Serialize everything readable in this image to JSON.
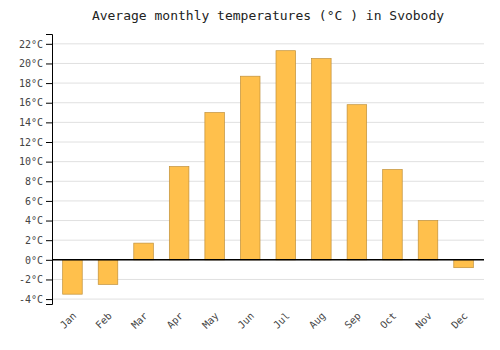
{
  "chart_data": {
    "type": "bar",
    "title": "Average monthly temperatures (°C ) in Svobody",
    "categories": [
      "Jan",
      "Feb",
      "Mar",
      "Apr",
      "May",
      "Jun",
      "Jul",
      "Aug",
      "Sep",
      "Oct",
      "Nov",
      "Dec"
    ],
    "values": [
      -3.5,
      -2.5,
      1.7,
      9.5,
      15.0,
      18.7,
      21.3,
      20.5,
      15.8,
      9.2,
      4.0,
      -0.8
    ],
    "color": "#FFC04C",
    "ylim": [
      -4.5,
      23
    ],
    "yticks": [
      {
        "value": -4,
        "label": "-4°C"
      },
      {
        "value": -2,
        "label": "-2°C"
      },
      {
        "value": 0,
        "label": "0°C"
      },
      {
        "value": 2,
        "label": "2°C"
      },
      {
        "value": 4,
        "label": "4°C"
      },
      {
        "value": 6,
        "label": "6°C"
      },
      {
        "value": 8,
        "label": "8°C"
      },
      {
        "value": 10,
        "label": "10°C"
      },
      {
        "value": 12,
        "label": "12°C"
      },
      {
        "value": 14,
        "label": "14°C"
      },
      {
        "value": 16,
        "label": "16°C"
      },
      {
        "value": 18,
        "label": "18°C"
      },
      {
        "value": 20,
        "label": "20°C"
      },
      {
        "value": 22,
        "label": "22°C"
      }
    ],
    "grid": true
  }
}
